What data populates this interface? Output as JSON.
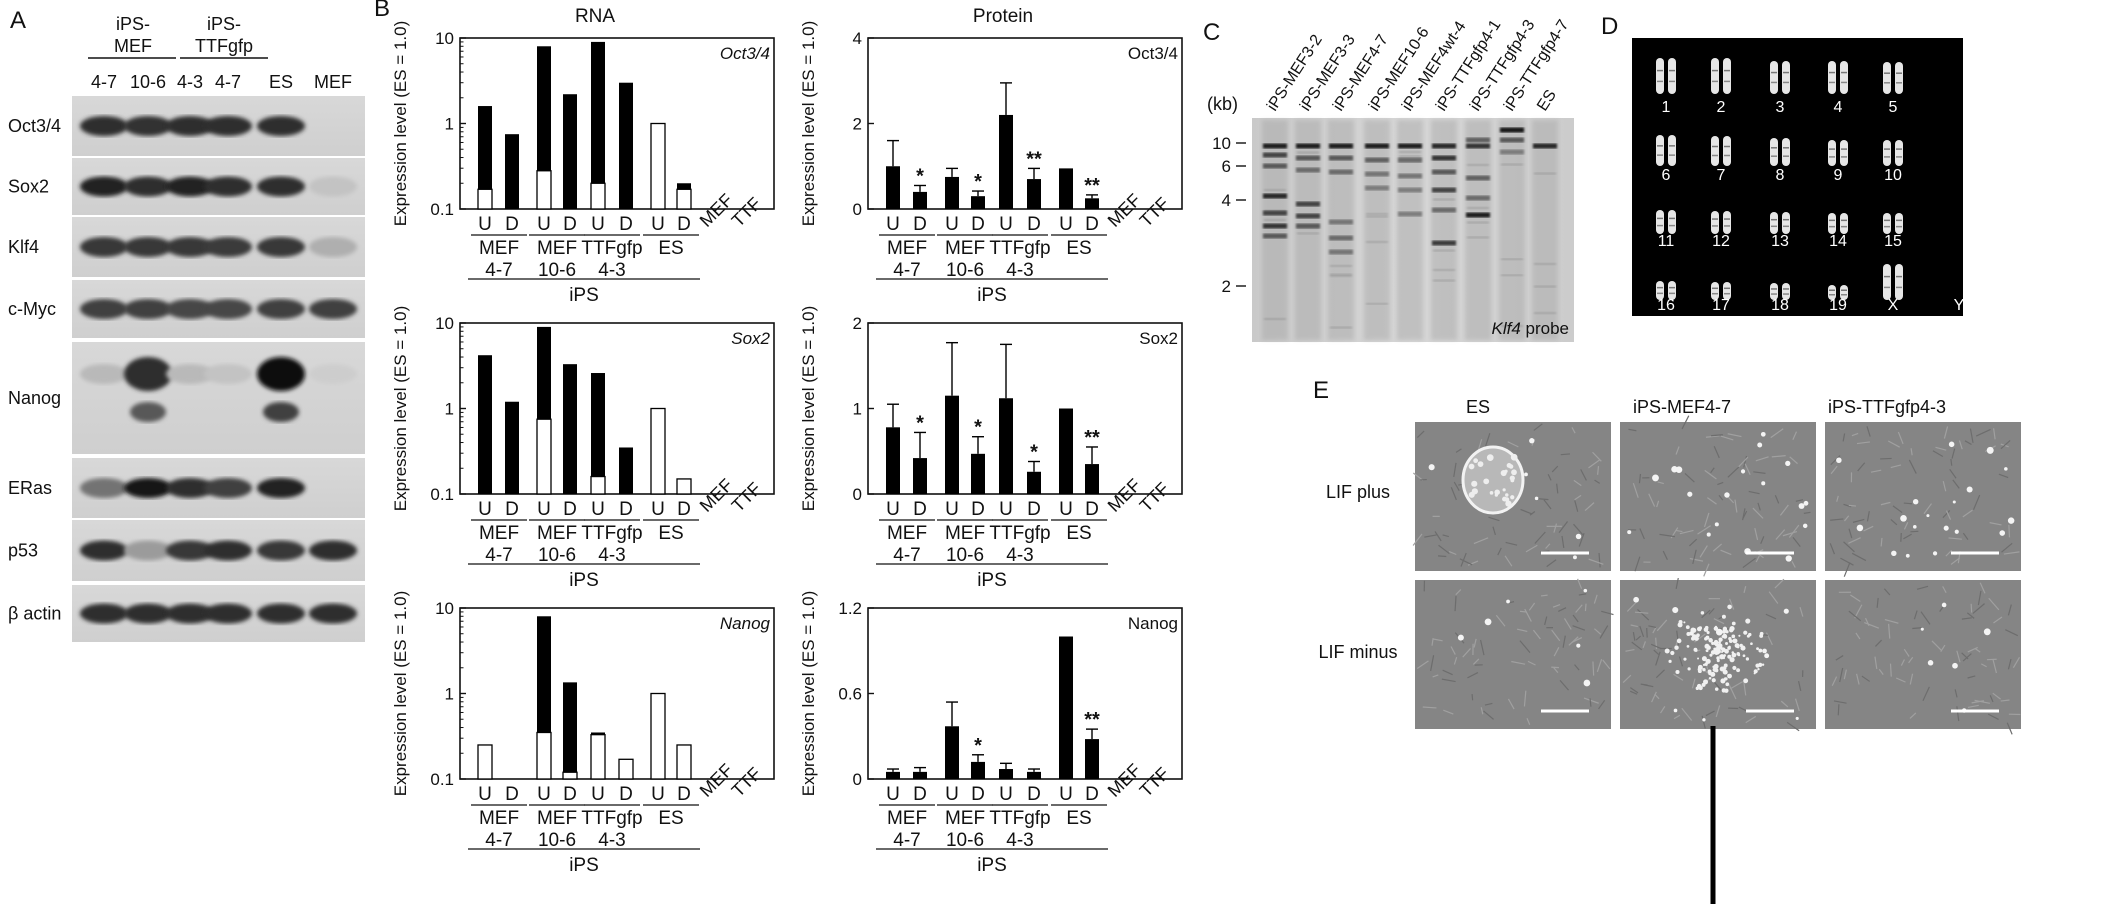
{
  "panels": {
    "A": "A",
    "B": "B",
    "C": "C",
    "D": "D",
    "E": "E"
  },
  "westernBlot": {
    "groupLabels": [
      {
        "text": "iPS-\nMEF",
        "lines": [
          "iPS-",
          "MEF"
        ]
      },
      {
        "text": "iPS-\nTTFgfp",
        "lines": [
          "iPS-",
          "TTFgfp"
        ]
      }
    ],
    "lanes": [
      "4-7",
      "10-6",
      "4-3",
      "4-7",
      "ES",
      "MEF"
    ],
    "rows": [
      {
        "label": "Oct3/4",
        "bands": [
          0.85,
          0.82,
          0.85,
          0.85,
          0.85,
          0.0
        ]
      },
      {
        "label": "Sox2",
        "bands": [
          0.9,
          0.85,
          0.9,
          0.85,
          0.85,
          0.1
        ]
      },
      {
        "label": "Klf4",
        "bands": [
          0.8,
          0.8,
          0.8,
          0.78,
          0.8,
          0.2
        ]
      },
      {
        "label": "c-Myc",
        "bands": [
          0.75,
          0.75,
          0.72,
          0.72,
          0.75,
          0.75
        ]
      },
      {
        "label": "Nanog",
        "bands": [
          0.15,
          0.85,
          0.15,
          0.1,
          1.0,
          0.05
        ]
      },
      {
        "label": "ERas",
        "bands": [
          0.5,
          0.95,
          0.85,
          0.75,
          0.9,
          0.0
        ]
      },
      {
        "label": "p53",
        "bands": [
          0.85,
          0.3,
          0.8,
          0.85,
          0.8,
          0.85
        ]
      },
      {
        "label": "β actin",
        "bands": [
          0.85,
          0.85,
          0.85,
          0.85,
          0.85,
          0.85
        ]
      }
    ]
  },
  "columnTitles": {
    "rna": "RNA",
    "protein": "Protein"
  },
  "ylabel": "Expression level (ES = 1.0)",
  "xaxis": {
    "ud": [
      "U",
      "D"
    ],
    "groups": [
      {
        "lines": [
          "MEF",
          "4-7"
        ]
      },
      {
        "lines": [
          "MEF",
          "10-6"
        ]
      },
      {
        "lines": [
          "TTFgfp",
          "4-3"
        ]
      },
      {
        "lines": [
          "ES"
        ]
      }
    ],
    "controls": [
      "MEF",
      "TTF"
    ],
    "ipsLabel": "iPS"
  },
  "chart_data": [
    {
      "type": "bar",
      "title": "Oct3/4",
      "scale": "log",
      "ylim": [
        0.1,
        10
      ],
      "yticks": [
        "0.1",
        "1",
        "10"
      ],
      "categories": [
        "MEF 4-7 U",
        "MEF 4-7 D",
        "MEF 10-6 U",
        "MEF 10-6 D",
        "TTFgfp 4-3 U",
        "TTFgfp 4-3 D",
        "ES U",
        "ES D",
        "MEF",
        "TTF"
      ],
      "series": [
        {
          "name": "total",
          "values": [
            1.6,
            0.75,
            8.0,
            2.2,
            9.0,
            3.0,
            1.0,
            0.2,
            null,
            null
          ]
        },
        {
          "name": "endogenous",
          "values": [
            0.17,
            null,
            0.28,
            null,
            0.2,
            null,
            1.0,
            0.17,
            null,
            null
          ]
        }
      ]
    },
    {
      "type": "bar",
      "title": "Oct3/4",
      "scale": "linear",
      "ylim": [
        0,
        4
      ],
      "yticks": [
        "0",
        "2",
        "4"
      ],
      "categories": [
        "MEF 4-7 U",
        "MEF 4-7 D",
        "MEF 10-6 U",
        "MEF 10-6 D",
        "TTFgfp 4-3 U",
        "TTFgfp 4-3 D",
        "ES U",
        "ES D",
        "MEF",
        "TTF"
      ],
      "values": [
        1.0,
        0.4,
        0.75,
        0.3,
        2.2,
        0.7,
        0.95,
        0.25,
        0,
        0
      ],
      "errors": [
        0.6,
        0.15,
        0.2,
        0.12,
        0.75,
        0.25,
        0,
        0.08,
        0,
        0
      ],
      "significance": [
        "",
        "*",
        "",
        "*",
        "",
        "**",
        "",
        "**",
        "",
        ""
      ]
    },
    {
      "type": "bar",
      "title": "Sox2",
      "scale": "log",
      "ylim": [
        0.1,
        10
      ],
      "yticks": [
        "0.1",
        "1",
        "10"
      ],
      "categories": [
        "MEF 4-7 U",
        "MEF 4-7 D",
        "MEF 10-6 U",
        "MEF 10-6 D",
        "TTFgfp 4-3 U",
        "TTFgfp 4-3 D",
        "ES U",
        "ES D",
        "MEF",
        "TTF"
      ],
      "series": [
        {
          "name": "total",
          "values": [
            4.2,
            1.2,
            9.0,
            3.3,
            2.6,
            0.35,
            1.0,
            0.15,
            null,
            null
          ]
        },
        {
          "name": "endogenous",
          "values": [
            null,
            null,
            0.75,
            null,
            0.16,
            null,
            1.0,
            0.15,
            null,
            null
          ]
        }
      ]
    },
    {
      "type": "bar",
      "title": "Sox2",
      "scale": "linear",
      "ylim": [
        0,
        2
      ],
      "yticks": [
        "0",
        "1",
        "2"
      ],
      "categories": [
        "MEF 4-7 U",
        "MEF 4-7 D",
        "MEF 10-6 U",
        "MEF 10-6 D",
        "TTFgfp 4-3 U",
        "TTFgfp 4-3 D",
        "ES U",
        "ES D",
        "MEF",
        "TTF"
      ],
      "values": [
        0.78,
        0.42,
        1.15,
        0.47,
        1.12,
        0.26,
        1.0,
        0.35,
        0,
        0
      ],
      "errors": [
        0.27,
        0.3,
        0.62,
        0.2,
        0.63,
        0.12,
        0,
        0.2,
        0,
        0
      ],
      "significance": [
        "",
        "*",
        "",
        "*",
        "",
        "*",
        "",
        "**",
        "",
        ""
      ]
    },
    {
      "type": "bar",
      "title": "Nanog",
      "scale": "log",
      "ylim": [
        0.1,
        10
      ],
      "yticks": [
        "0.1",
        "1",
        "10"
      ],
      "categories": [
        "MEF 4-7 U",
        "MEF 4-7 D",
        "MEF 10-6 U",
        "MEF 10-6 D",
        "TTFgfp 4-3 U",
        "TTFgfp 4-3 D",
        "ES U",
        "ES D",
        "MEF",
        "TTF"
      ],
      "series": [
        {
          "name": "total",
          "values": [
            null,
            null,
            8.0,
            1.35,
            0.35,
            null,
            null,
            null,
            null,
            null
          ]
        },
        {
          "name": "endogenous",
          "values": [
            0.25,
            null,
            0.35,
            0.12,
            0.33,
            0.17,
            1.0,
            0.25,
            null,
            null
          ]
        }
      ]
    },
    {
      "type": "bar",
      "title": "Nanog",
      "scale": "linear",
      "ylim": [
        0,
        1.2
      ],
      "yticks": [
        "0",
        "0.6",
        "1.2"
      ],
      "categories": [
        "MEF 4-7 U",
        "MEF 4-7 D",
        "MEF 10-6 U",
        "MEF 10-6 D",
        "TTFgfp 4-3 U",
        "TTFgfp 4-3 D",
        "ES U",
        "ES D",
        "MEF",
        "TTF"
      ],
      "values": [
        0.05,
        0.05,
        0.37,
        0.12,
        0.07,
        0.05,
        1.0,
        0.28,
        0.01,
        0.01
      ],
      "errors": [
        0.02,
        0.03,
        0.17,
        0.05,
        0.04,
        0.02,
        0,
        0.07,
        0,
        0
      ],
      "significance": [
        "",
        "",
        "",
        "*",
        "",
        "",
        "",
        "**",
        "",
        ""
      ]
    }
  ],
  "southern": {
    "lanes": [
      "iPS-MEF3-2",
      "iPS-MEF3-3",
      "iPS-MEF4-7",
      "iPS-MEF10-6",
      "iPS-MEF4wt-4",
      "iPS-TTFgfp4-1",
      "iPS-TTFgfp4-3",
      "iPS-TTFgfp4-7",
      "ES"
    ],
    "unit": "(kb)",
    "markers": [
      "10",
      "6",
      "4",
      "2"
    ],
    "probeItalic": "Klf4",
    "probeRest": " probe"
  },
  "karyotype": {
    "labels": [
      "1",
      "2",
      "3",
      "4",
      "5",
      "6",
      "7",
      "8",
      "9",
      "10",
      "11",
      "12",
      "13",
      "14",
      "15",
      "16",
      "17",
      "18",
      "19",
      "X",
      "Y"
    ]
  },
  "morphology": {
    "columns": [
      "ES",
      "iPS-MEF4-7",
      "iPS-TTFgfp4-3"
    ],
    "rows": [
      "LIF plus",
      "LIF minus"
    ]
  }
}
